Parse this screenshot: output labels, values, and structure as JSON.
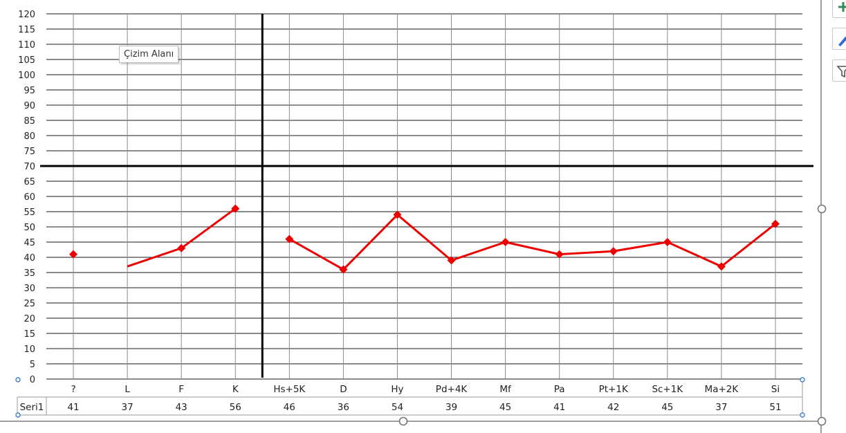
{
  "tooltip": {
    "label": "Çizim Alanı"
  },
  "side_buttons": [
    {
      "icon": "plus-icon",
      "color": "#2e8b57"
    },
    {
      "icon": "brush-icon",
      "color": "#2a6bd6"
    },
    {
      "icon": "filter-icon",
      "color": "#555555"
    }
  ],
  "chart_data": {
    "type": "line",
    "categories": [
      "?",
      "L",
      "F",
      "K",
      "Hs+5K",
      "D",
      "Hy",
      "Pd+4K",
      "Mf",
      "Pa",
      "Pt+1K",
      "Sc+1K",
      "Ma+2K",
      "Si"
    ],
    "ylim": [
      0,
      120
    ],
    "ytick_step": 5,
    "grid": true,
    "segments": [
      [
        0
      ],
      [
        1,
        2,
        3
      ],
      [
        4,
        5,
        6,
        7,
        8,
        9,
        10,
        11,
        12,
        13
      ]
    ],
    "reference_lines": {
      "vertical_between": [
        3,
        4
      ],
      "horizontal_at": 70
    },
    "series": [
      {
        "name": "Seri1",
        "color": "#ee0000",
        "marker": "diamond",
        "values": [
          41,
          37,
          43,
          56,
          46,
          36,
          54,
          39,
          45,
          41,
          42,
          45,
          37,
          51
        ]
      }
    ],
    "table": {
      "row_label": "Seri1",
      "values": [
        "41",
        "37",
        "43",
        "56",
        "46",
        "36",
        "54",
        "39",
        "45",
        "41",
        "42",
        "45",
        "37",
        "51"
      ]
    }
  }
}
